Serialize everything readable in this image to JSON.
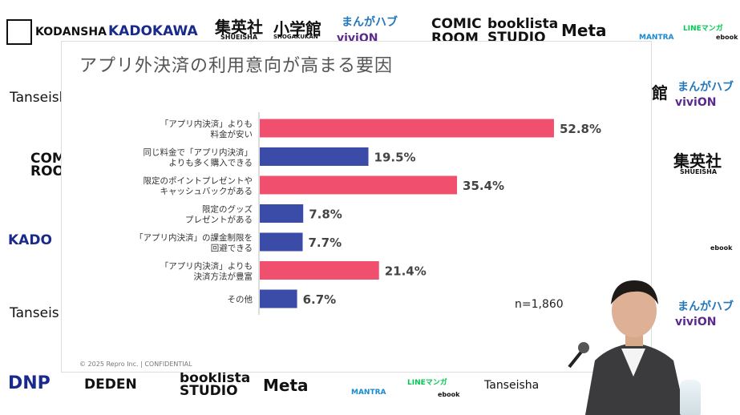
{
  "logos": {
    "top": [
      "KODANSHA",
      "KADOKAWA",
      "集英社",
      "SHUEISHA",
      "小学館",
      "SHOGAKUKAN",
      "まんがハブ",
      "viviON",
      "COMIC",
      "ROOM",
      "booklista",
      "STUDIO",
      "Meta",
      "MANTRA",
      "LINEマンガ",
      "ebook"
    ],
    "left": [
      "Tanseisha",
      "COMIC",
      "ROOM",
      "KADO",
      "Tanseis"
    ],
    "right": [
      "館",
      "まんがハブ",
      "viviON",
      "集英社",
      "SHUEISHA",
      "ebook",
      "まんがハブ",
      "viviON"
    ],
    "bottom": [
      "DNP",
      "DEDEN",
      "booklista",
      "STUDIO",
      "Meta",
      "MANTRA",
      "LINEマンガ",
      "ebook",
      "Tanseisha"
    ]
  },
  "slide": {
    "title": "アプリ外決済の利用意向が高まる要因",
    "footer": "© 2025 Repro Inc. | CONFIDENTIAL",
    "n_label": "n=1,860"
  },
  "colors": {
    "highlight": "#f0506e",
    "normal": "#3a4ba8"
  },
  "chart_data": {
    "type": "bar",
    "orientation": "horizontal",
    "categories": [
      [
        "「アプリ内決済」よりも",
        "料金が安い"
      ],
      [
        "同じ料金で「アプリ内決済」",
        "よりも多く購入できる"
      ],
      [
        "限定のポイントプレゼントや",
        "キャッシュバックがある"
      ],
      [
        "限定のグッズ",
        "プレゼントがある"
      ],
      [
        "「アプリ内決済」の課金制限を",
        "回避できる"
      ],
      [
        "「アプリ内決済」よりも",
        "決済方法が豊富"
      ],
      [
        "その他"
      ]
    ],
    "values": [
      52.8,
      19.5,
      35.4,
      7.8,
      7.7,
      21.4,
      6.7
    ],
    "value_labels": [
      "52.8%",
      "19.5%",
      "35.4%",
      "7.8%",
      "7.7%",
      "21.4%",
      "6.7%"
    ],
    "highlight": [
      true,
      false,
      true,
      false,
      false,
      true,
      false
    ],
    "xlim": [
      0,
      60
    ],
    "grid": false
  }
}
